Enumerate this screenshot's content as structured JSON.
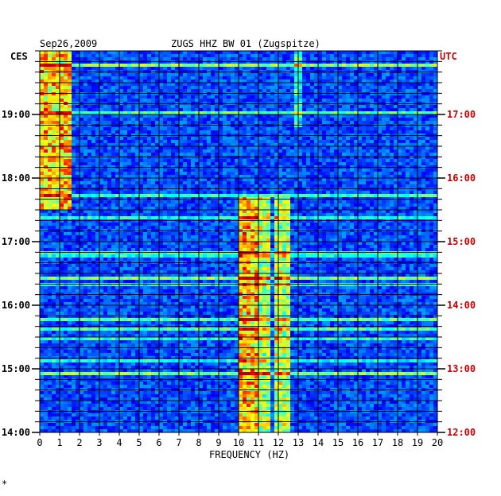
{
  "header": {
    "date": "Sep26,2009",
    "station": "ZUGS HHZ BW 01 (Zugspitze)"
  },
  "left_axis": {
    "label": "CES"
  },
  "right_axis": {
    "label": "UTC"
  },
  "footer": {
    "mark": "*"
  },
  "colors": {
    "background": "#0000cc",
    "grid": "#000000",
    "utc_labels": "#cc0000",
    "axis_text": "#000000"
  },
  "chart_data": {
    "type": "heatmap",
    "title": "ZUGS HHZ BW 01 (Zugspitze)",
    "date": "Sep26,2009",
    "xlabel": "FREQUENCY (HZ)",
    "xlim": [
      0,
      20
    ],
    "x_ticks": [
      "0",
      "1",
      "2",
      "3",
      "4",
      "5",
      "6",
      "7",
      "8",
      "9",
      "10",
      "11",
      "12",
      "13",
      "14",
      "15",
      "16",
      "17",
      "18",
      "19",
      "20"
    ],
    "y_ticks_left": [
      "19:00",
      "18:00",
      "17:00",
      "16:00",
      "15:00",
      "14:00"
    ],
    "y_ticks_right": [
      "17:00",
      "16:00",
      "15:00",
      "14:00",
      "13:00",
      "12:00"
    ],
    "ylim_hours_ces": [
      14.0,
      20.0
    ],
    "y_direction": "time increases upward (14:00 CES at bottom, 20:00 at top)",
    "colormap": "jet (blue low, red high)",
    "features": [
      {
        "name": "low-frequency energy",
        "x_range": [
          0,
          1.5
        ],
        "y_range": [
          17.5,
          20.0
        ],
        "intensity": "high"
      },
      {
        "name": "band near 10.5 Hz",
        "x_range": [
          10.0,
          11.0
        ],
        "y_range": [
          14.0,
          17.7
        ],
        "intensity": "high"
      },
      {
        "name": "band near 11.3 Hz",
        "x_range": [
          11.1,
          11.5
        ],
        "y_range": [
          14.0,
          17.7
        ],
        "intensity": "medium"
      },
      {
        "name": "band near 12.2 Hz",
        "x_range": [
          11.9,
          12.6
        ],
        "y_range": [
          14.0,
          17.7
        ],
        "intensity": "medium"
      },
      {
        "name": "line near 13 Hz",
        "x_range": [
          12.9,
          13.2
        ],
        "y_range": [
          18.8,
          20.0
        ],
        "intensity": "low"
      }
    ]
  }
}
